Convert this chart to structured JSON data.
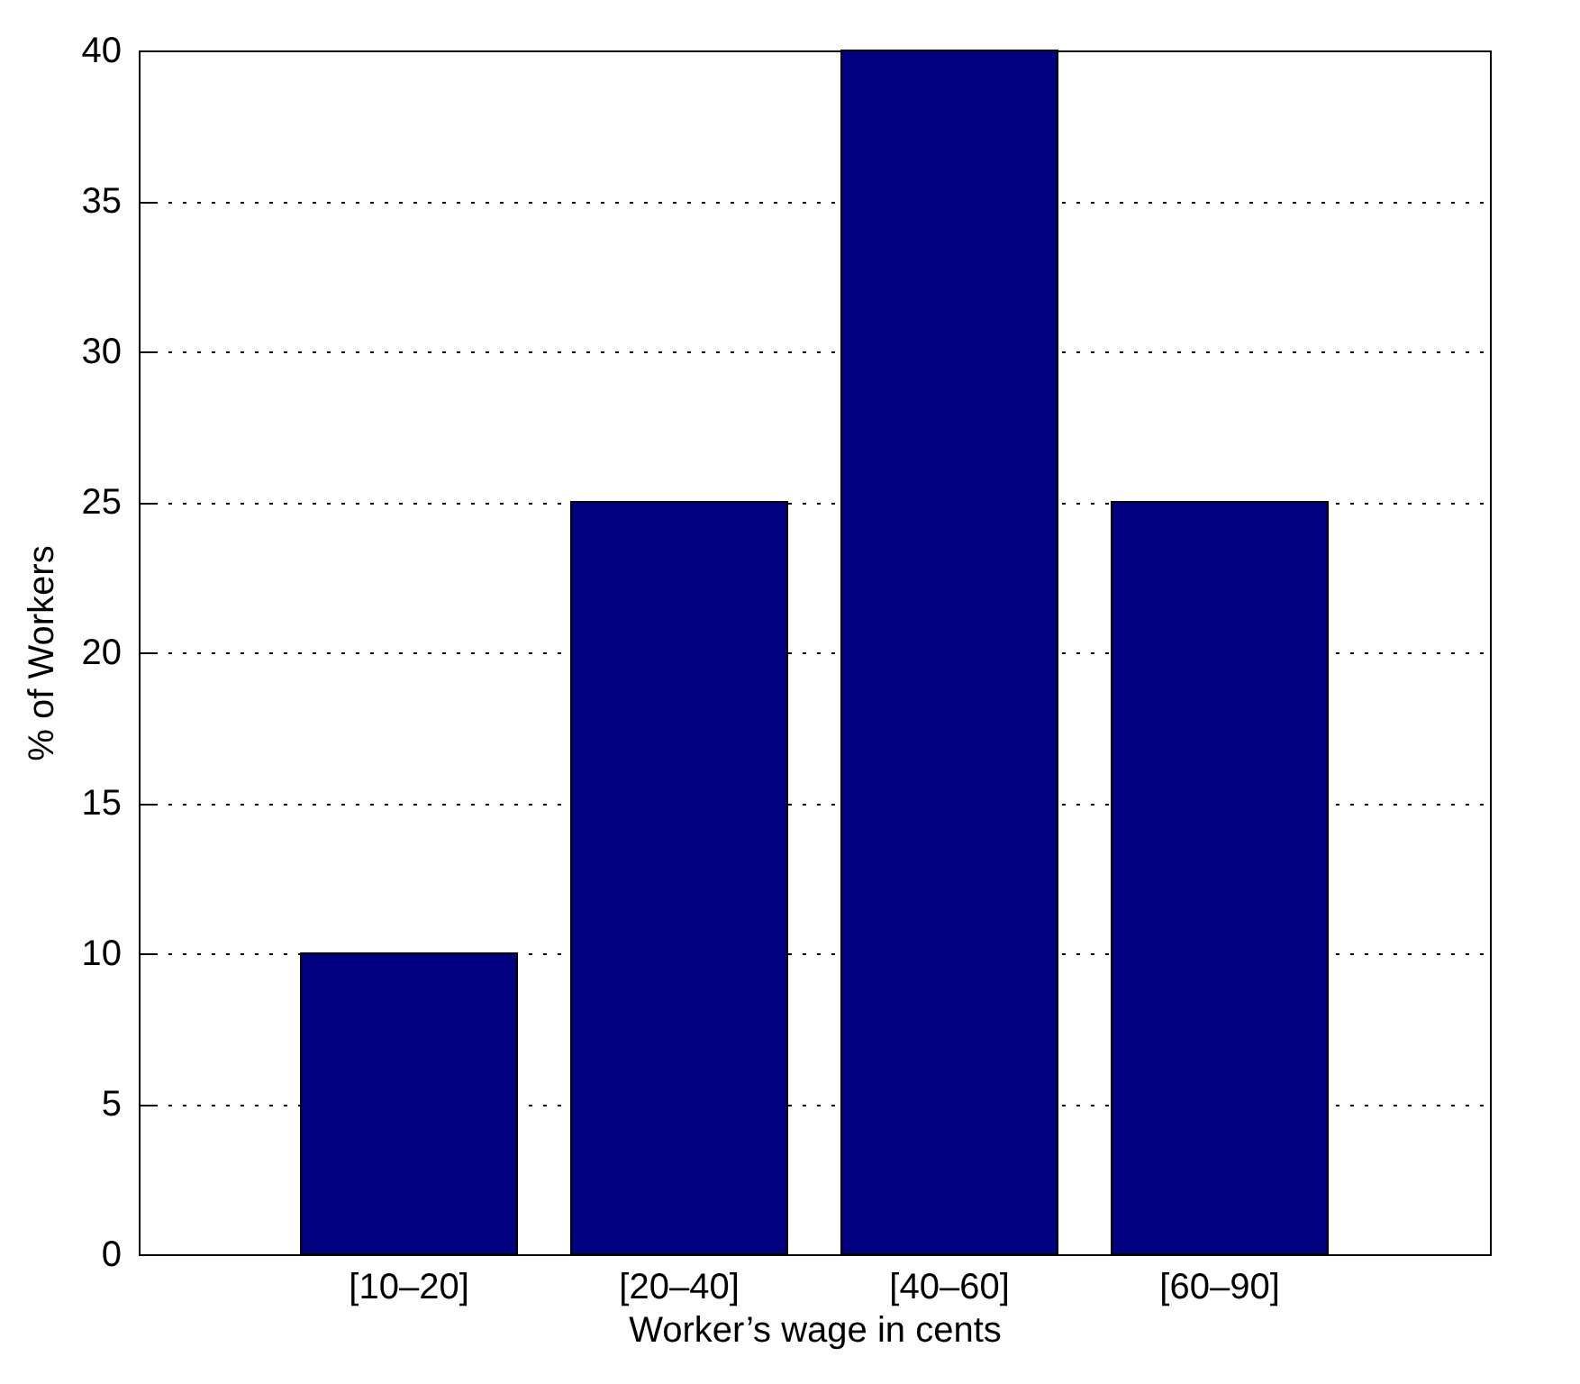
{
  "chart_data": {
    "type": "bar",
    "xlabel": "Worker’s wage in cents",
    "ylabel": "% of Workers",
    "categories": [
      "[10–20]",
      "[20–40]",
      "[40–60]",
      "[60–90]"
    ],
    "values": [
      10,
      25,
      40,
      25
    ],
    "color": "#000080",
    "ylim": [
      0,
      40
    ],
    "yticks": [
      0,
      5,
      10,
      15,
      20,
      25,
      30,
      35,
      40
    ],
    "grid": "y"
  }
}
